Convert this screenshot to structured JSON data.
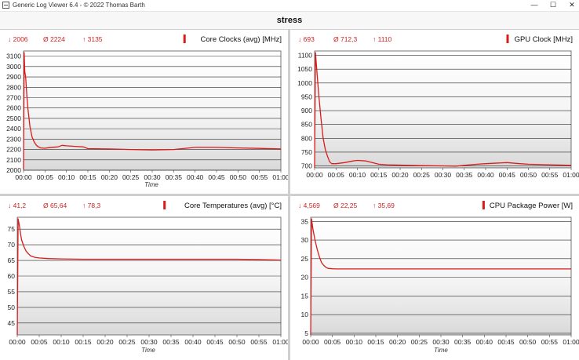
{
  "window": {
    "title": "Generic Log Viewer 6.4 - © 2022 Thomas Barth",
    "minimize_glyph": "—",
    "maximize_glyph": "☐",
    "close_glyph": "✕"
  },
  "header": {
    "title": "stress"
  },
  "colors": {
    "series": "#d81c1c",
    "stat_text": "#d02020",
    "plot_bg_top": "#ffffff",
    "plot_bg_bottom": "#d9d9d9"
  },
  "chart_data": [
    {
      "type": "line",
      "title": "Core Clocks (avg) [MHz]",
      "stats": {
        "min": "2006",
        "avg": "2224",
        "max": "3135"
      },
      "xlabel": "Time",
      "x_ticks": [
        "00:00",
        "00:05",
        "00:10",
        "00:15",
        "00:20",
        "00:25",
        "00:30",
        "00:35",
        "00:40",
        "00:45",
        "00:50",
        "00:55",
        "01:00"
      ],
      "y_ticks": [
        2000,
        2100,
        2200,
        2300,
        2400,
        2500,
        2600,
        2700,
        2800,
        2900,
        3000,
        3100
      ],
      "ylim": [
        2000,
        3135
      ],
      "xlim_min": [
        0,
        60
      ],
      "series": [
        {
          "x_min": [
            0,
            0.15,
            0.3,
            0.5,
            0.8,
            1,
            1.5,
            2,
            2.5,
            3,
            3.5,
            4,
            5,
            6,
            8,
            9,
            10,
            12,
            14,
            15,
            20,
            25,
            30,
            35,
            40,
            45,
            50,
            55,
            60
          ],
          "values": [
            2006,
            3135,
            2950,
            2900,
            2700,
            2600,
            2420,
            2320,
            2270,
            2240,
            2225,
            2215,
            2212,
            2218,
            2225,
            2240,
            2235,
            2230,
            2225,
            2208,
            2205,
            2200,
            2195,
            2200,
            2220,
            2220,
            2215,
            2210,
            2205
          ]
        }
      ]
    },
    {
      "type": "line",
      "title": "GPU Clock [MHz]",
      "stats": {
        "min": "693",
        "avg": "712,3",
        "max": "1110"
      },
      "xlabel": "",
      "x_ticks": [
        "00:00",
        "00:05",
        "00:10",
        "00:15",
        "00:20",
        "00:25",
        "00:30",
        "00:35",
        "00:40",
        "00:45",
        "00:50",
        "00:55",
        "01:00"
      ],
      "y_ticks": [
        700,
        750,
        800,
        850,
        900,
        950,
        1000,
        1050,
        1100
      ],
      "ylim": [
        693,
        1110
      ],
      "xlim_min": [
        0,
        60
      ],
      "series": [
        {
          "x_min": [
            0,
            0.2,
            0.5,
            1,
            1.5,
            2,
            2.5,
            3,
            3.5,
            4,
            5,
            7,
            9,
            10,
            12,
            15,
            17,
            20,
            25,
            30,
            33,
            35,
            38,
            40,
            45,
            48,
            50,
            55,
            58,
            60
          ],
          "values": [
            693,
            1110,
            1050,
            950,
            870,
            800,
            760,
            735,
            715,
            708,
            708,
            712,
            718,
            720,
            718,
            706,
            704,
            703,
            701,
            700,
            699,
            702,
            706,
            708,
            712,
            708,
            706,
            704,
            703,
            702
          ]
        }
      ]
    },
    {
      "type": "line",
      "title": "Core Temperatures (avg) [°C]",
      "stats": {
        "min": "41,2",
        "avg": "65,64",
        "max": "78,3"
      },
      "xlabel": "Time",
      "x_ticks": [
        "00:00",
        "00:05",
        "00:10",
        "00:15",
        "00:20",
        "00:25",
        "00:30",
        "00:35",
        "00:40",
        "00:45",
        "00:50",
        "00:55",
        "01:00"
      ],
      "y_ticks": [
        45,
        50,
        55,
        60,
        65,
        70,
        75
      ],
      "ylim": [
        41.2,
        78.3
      ],
      "xlim_min": [
        0,
        60
      ],
      "series": [
        {
          "x_min": [
            0,
            0.2,
            0.5,
            0.8,
            1,
            1.5,
            2,
            2.5,
            3,
            4,
            5,
            7,
            10,
            15,
            20,
            30,
            40,
            50,
            55,
            60
          ],
          "values": [
            41.2,
            78.3,
            76,
            73,
            71.5,
            69.5,
            68,
            67.2,
            66.5,
            66,
            65.8,
            65.6,
            65.5,
            65.4,
            65.4,
            65.4,
            65.4,
            65.4,
            65.3,
            65.1
          ]
        }
      ]
    },
    {
      "type": "line",
      "title": "CPU Package Power [W]",
      "stats": {
        "min": "4,569",
        "avg": "22,25",
        "max": "35,69"
      },
      "xlabel": "Time",
      "x_ticks": [
        "00:00",
        "00:05",
        "00:10",
        "00:15",
        "00:20",
        "00:25",
        "00:30",
        "00:35",
        "00:40",
        "00:45",
        "00:50",
        "00:55",
        "01:00"
      ],
      "y_ticks": [
        5,
        10,
        15,
        20,
        25,
        30,
        35
      ],
      "ylim": [
        4.569,
        35.69
      ],
      "xlim_min": [
        0,
        60
      ],
      "series": [
        {
          "x_min": [
            0,
            0.2,
            0.5,
            1,
            1.5,
            2,
            2.5,
            3,
            3.5,
            4,
            5,
            6,
            10,
            20,
            30,
            40,
            50,
            60
          ],
          "values": [
            4.569,
            35.69,
            33,
            30,
            27.5,
            25.5,
            24,
            23.2,
            22.7,
            22.4,
            22.3,
            22.25,
            22.25,
            22.25,
            22.25,
            22.25,
            22.25,
            22.25
          ]
        }
      ]
    }
  ]
}
